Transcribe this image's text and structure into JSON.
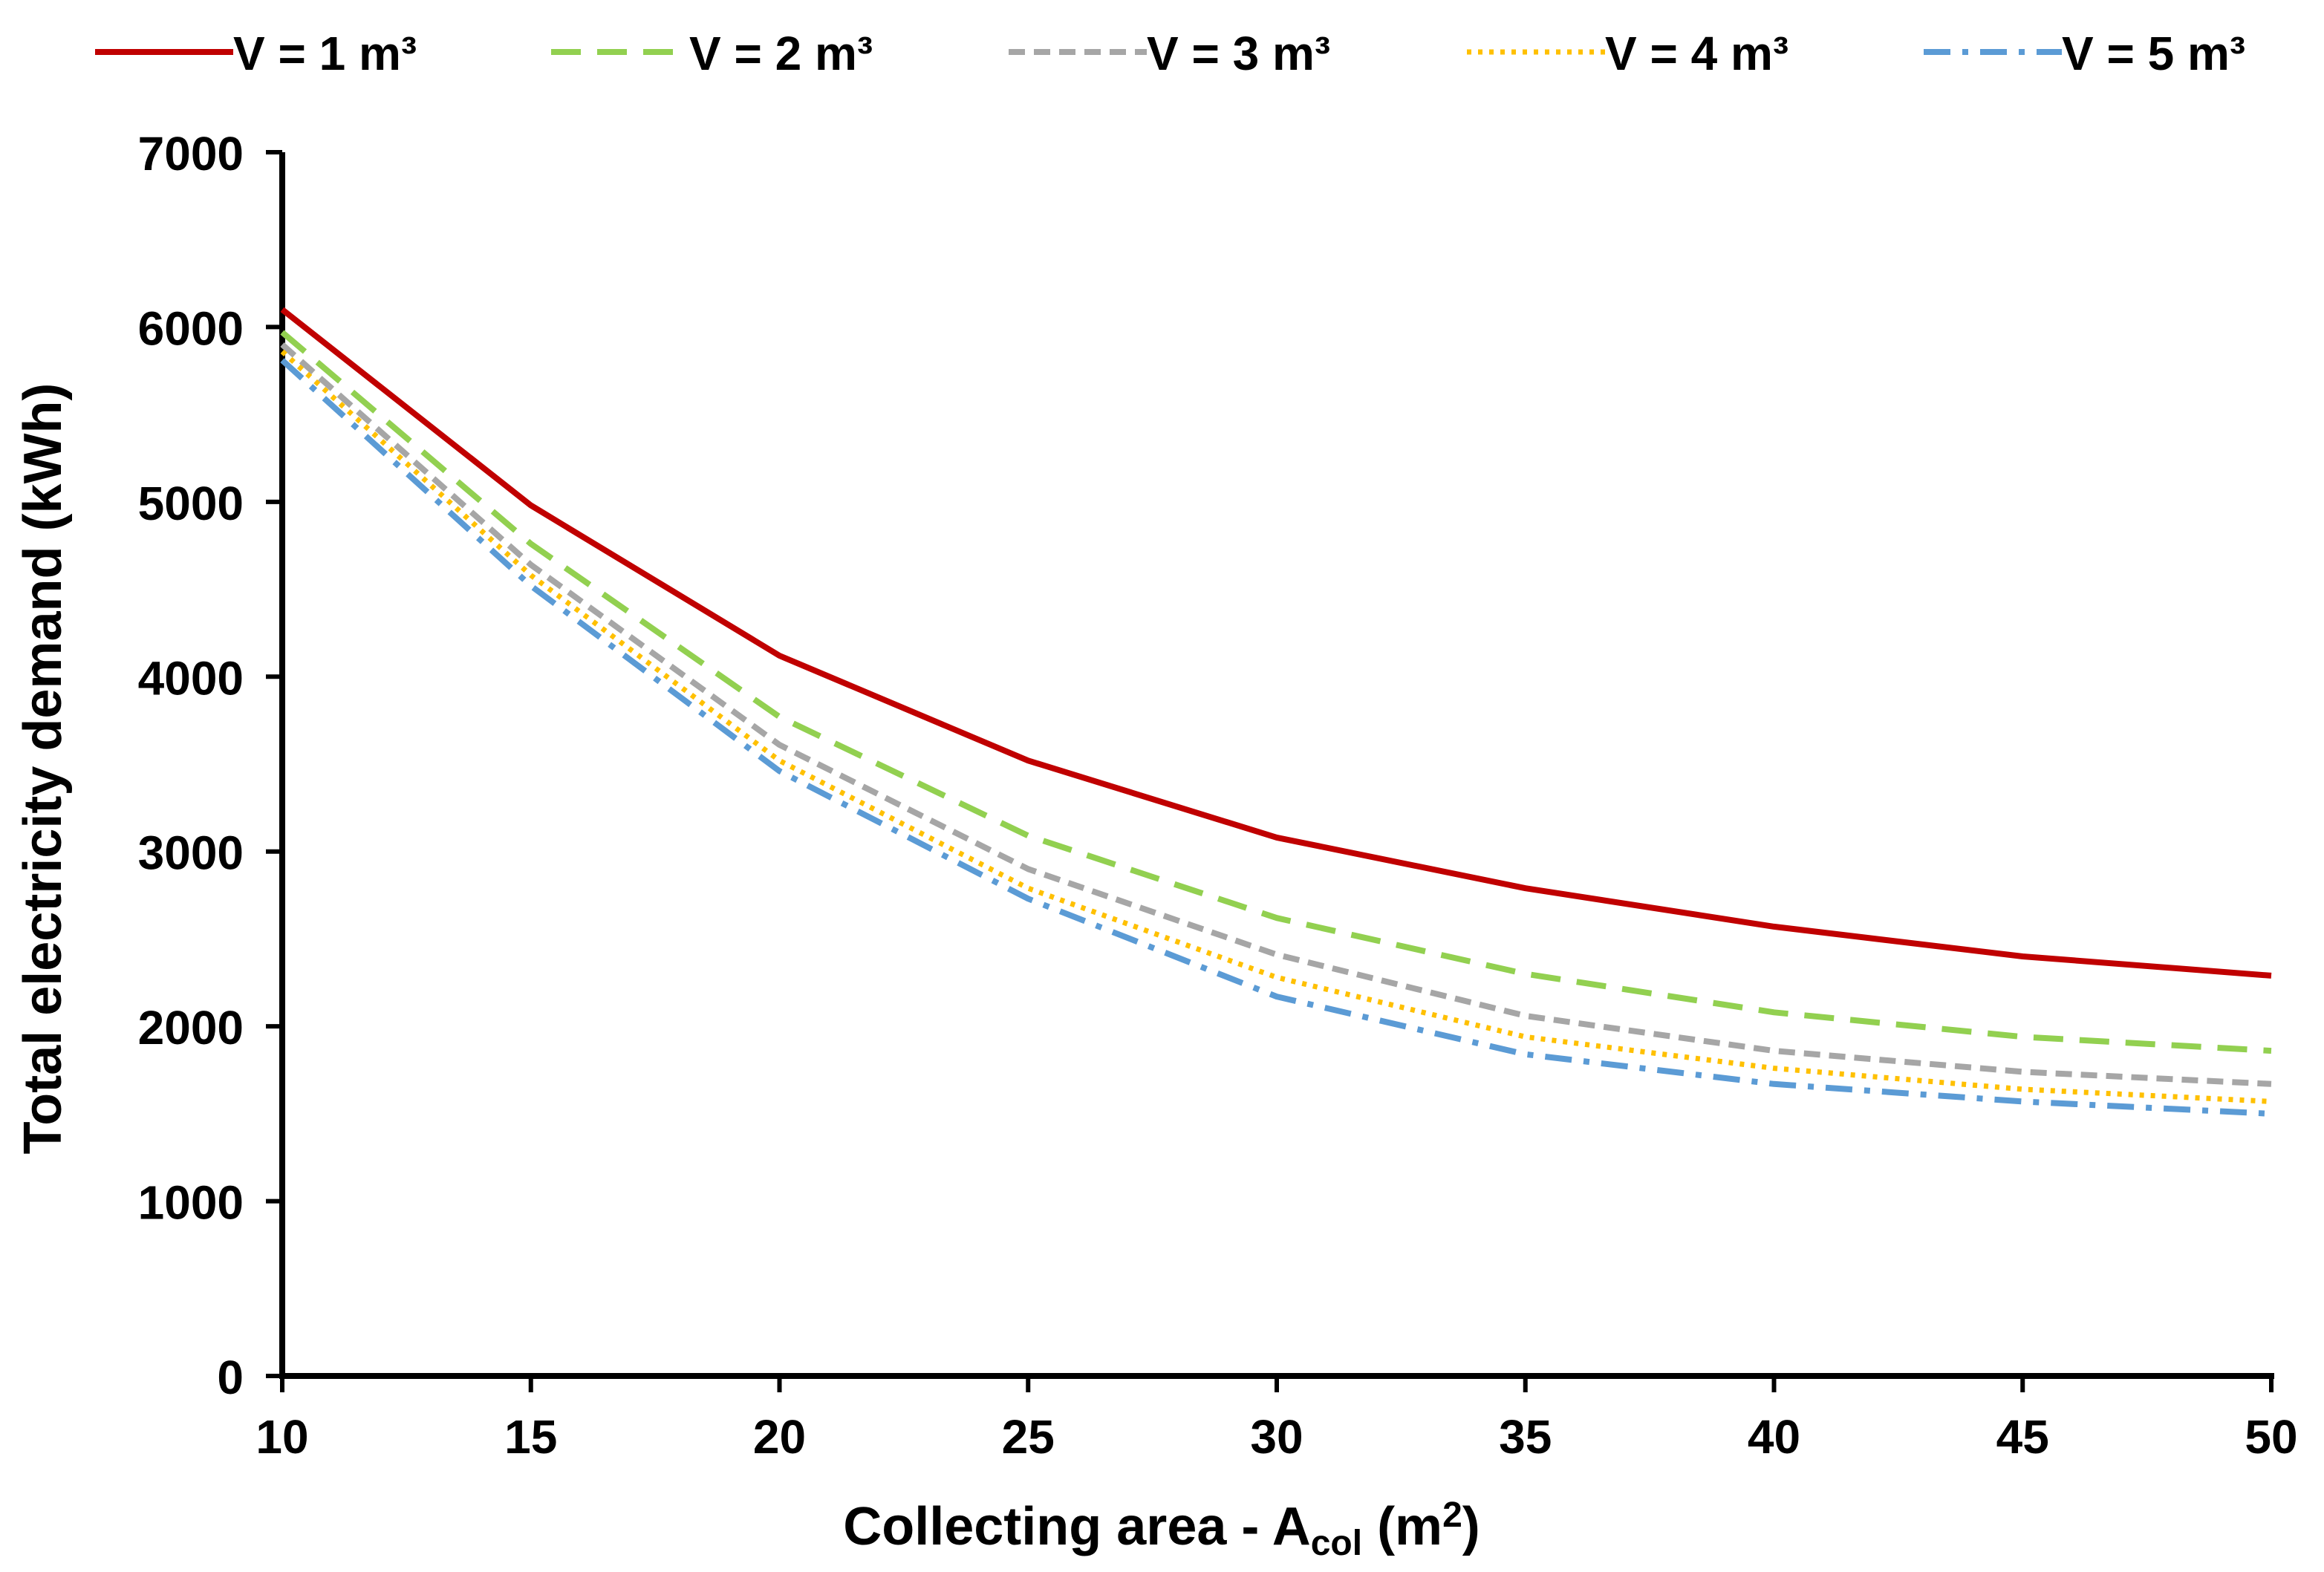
{
  "chart_data": {
    "type": "line",
    "title": "",
    "xlabel_parts": {
      "main": "Collecting area - A",
      "subscript": "col",
      "unit_open": " (m",
      "superscript": "2",
      "unit_close": ")"
    },
    "ylabel": "Total electricity demand (kWh)",
    "x": [
      10,
      15,
      20,
      25,
      30,
      35,
      40,
      45,
      50
    ],
    "x_ticks": [
      "10",
      "15",
      "20",
      "25",
      "30",
      "35",
      "40",
      "45",
      "50"
    ],
    "y_ticks": [
      "0",
      "1000",
      "2000",
      "3000",
      "4000",
      "5000",
      "6000",
      "7000"
    ],
    "xlim": [
      10,
      50
    ],
    "ylim": [
      0,
      7000
    ],
    "grid": false,
    "legend_position": "top",
    "series": [
      {
        "name": "V = 1 m³",
        "values": [
          6100,
          4980,
          4120,
          3520,
          3080,
          2790,
          2570,
          2400,
          2290
        ],
        "color": "#C00000",
        "style": "solid"
      },
      {
        "name": "V = 2 m³",
        "values": [
          5970,
          4760,
          3770,
          3090,
          2620,
          2300,
          2080,
          1940,
          1860
        ],
        "color": "#92D050",
        "style": "dashed"
      },
      {
        "name": "V = 3 m³",
        "values": [
          5900,
          4640,
          3610,
          2900,
          2410,
          2060,
          1860,
          1740,
          1670
        ],
        "color": "#A6A6A6",
        "style": "short-dash"
      },
      {
        "name": "V = 4 m³",
        "values": [
          5860,
          4580,
          3520,
          2790,
          2280,
          1940,
          1760,
          1640,
          1570
        ],
        "color": "#FFC000",
        "style": "dotted"
      },
      {
        "name": "V = 5 m³",
        "values": [
          5810,
          4520,
          3460,
          2730,
          2170,
          1840,
          1670,
          1570,
          1500
        ],
        "color": "#5B9BD5",
        "style": "dash-dot"
      }
    ]
  }
}
